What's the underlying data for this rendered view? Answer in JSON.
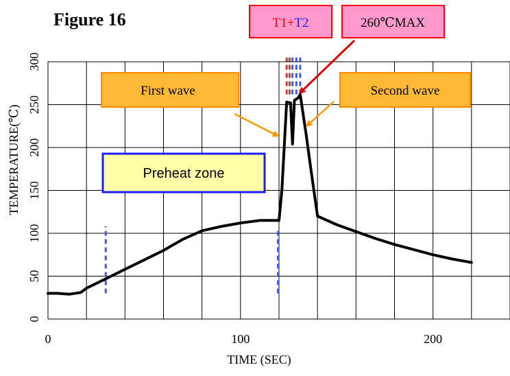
{
  "figure_label": "Figure 16",
  "chart_data": {
    "type": "line",
    "title": "",
    "xlabel": "TIME (SEC)",
    "ylabel": "TEMPERATURE(℃)",
    "xlim": [
      0,
      240
    ],
    "ylim": [
      0,
      300
    ],
    "x_ticks": [
      0,
      100,
      200
    ],
    "y_ticks": [
      0,
      50,
      100,
      150,
      200,
      250,
      300
    ],
    "x_tick_labels": [
      "0",
      "100",
      "200"
    ],
    "y_tick_labels": [
      "0",
      "50",
      "100",
      "150",
      "200",
      "250",
      "300"
    ],
    "grid": true,
    "series": [
      {
        "x": [
          0,
          5,
          11,
          17,
          20,
          30,
          40,
          50,
          60,
          70,
          80,
          90,
          100,
          110,
          120,
          121.5,
          124,
          126,
          127,
          128,
          130,
          131,
          134,
          137,
          140,
          150,
          160,
          170,
          180,
          190,
          200,
          210,
          220
        ],
        "y": [
          30,
          30,
          29,
          31,
          36,
          47,
          58,
          69,
          80,
          93,
          103,
          108,
          112,
          115,
          115,
          150,
          253,
          252,
          204,
          255,
          258,
          262,
          217,
          168,
          120,
          110,
          102,
          94,
          87,
          81,
          75,
          70,
          66
        ],
        "color": "#000000"
      }
    ],
    "markers": [
      {
        "x": 30,
        "y_from": 30,
        "y_to": 108,
        "color": "#3b5bdb",
        "style": "dashed"
      },
      {
        "x": 119.5,
        "y_from": 30,
        "y_to": 105,
        "color": "#3b5bdb",
        "style": "dashed"
      },
      {
        "x": 124,
        "y_from": 262,
        "y_to": 305,
        "color": "#e03131",
        "style": "dashed"
      },
      {
        "x": 125.5,
        "y_from": 262,
        "y_to": 305,
        "color": "#e03131",
        "style": "dashed"
      },
      {
        "x": 127,
        "y_from": 262,
        "y_to": 305,
        "color": "#3b5bdb",
        "style": "dashed"
      },
      {
        "x": 129,
        "y_from": 262,
        "y_to": 305,
        "color": "#3b5bdb",
        "style": "dashed"
      },
      {
        "x": 131,
        "y_from": 262,
        "y_to": 305,
        "color": "#3b5bdb",
        "style": "dashed"
      }
    ],
    "annotations": {
      "t1_t2": {
        "prefix": "T1+",
        "suffix": "T2",
        "bg": "#ff99cc",
        "border": "#ff0000",
        "prefix_color": "#ff0000",
        "suffix_color": "#1c1cff"
      },
      "max_temp": {
        "text": "260℃MAX",
        "bg": "#ff99cc",
        "border": "#ff0000"
      },
      "first_wave": {
        "text": "First wave",
        "bg": "#ffb833",
        "border": "#ff8c00"
      },
      "second_wave": {
        "text": "Second wave",
        "bg": "#ffb833",
        "border": "#ff8c00"
      },
      "preheat_zone": {
        "text": "Preheat zone",
        "bg": "#ffffa8",
        "border": "#1c1cff"
      }
    }
  }
}
